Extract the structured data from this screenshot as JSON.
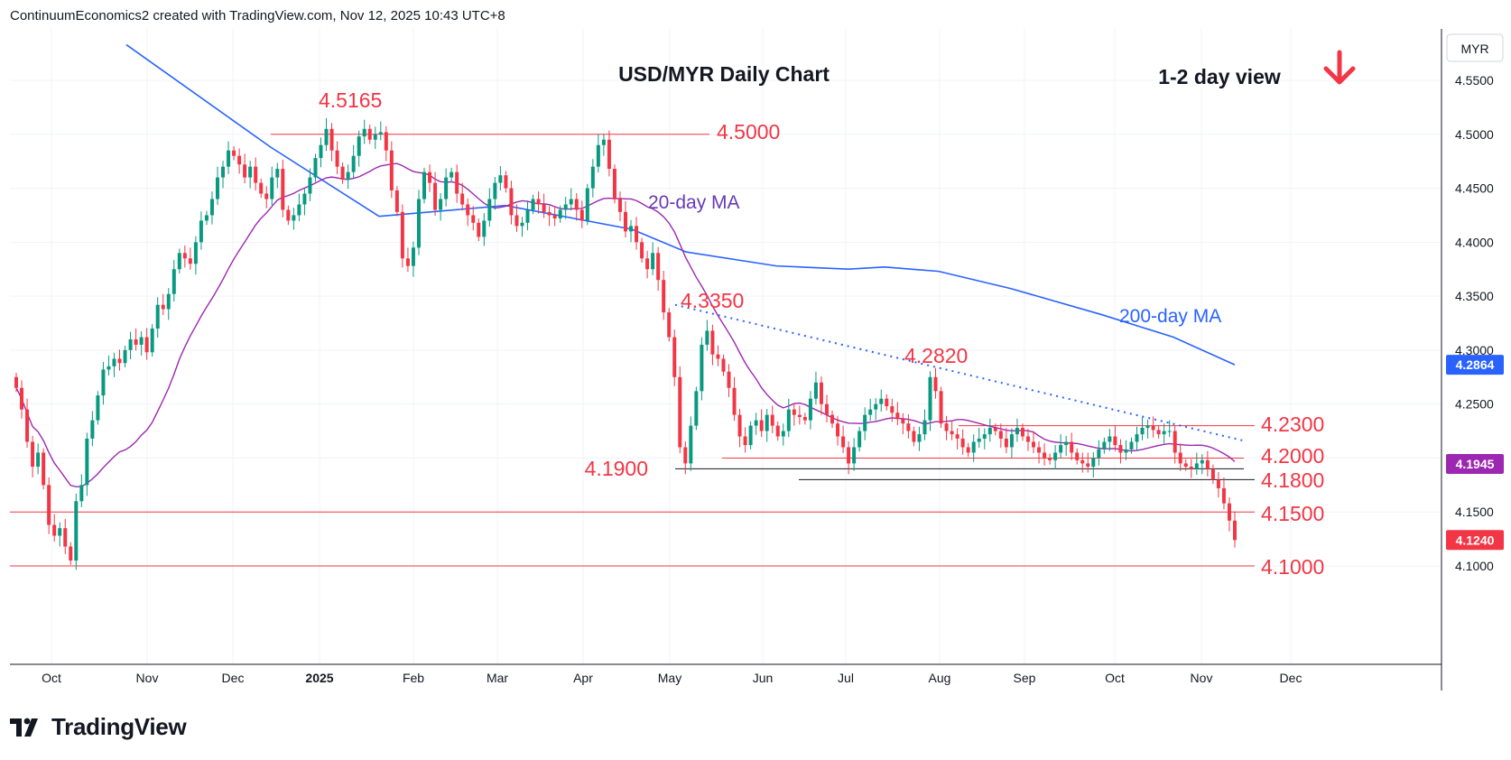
{
  "header": {
    "attribution": "ContinuumEconomics2 created with TradingView.com, Nov 12, 2025 10:43 UTC+8"
  },
  "footer": {
    "brand": "TradingView",
    "logo_icon": "tradingview-logo-icon"
  },
  "colors": {
    "up": "#089981",
    "down": "#f23645",
    "ma20": "#9c27b0",
    "ma200": "#2962ff",
    "levels": "#f23645",
    "annotation_text": "#f23645",
    "current_price_bg": "#2962ff",
    "ma20_label_bg": "#9c27b0"
  },
  "chart_data": {
    "type": "candlestick",
    "title": "USD/MYR Daily Chart",
    "view_label": "1-2 day view",
    "view_direction_icon": "down-arrow-icon",
    "currency": "MYR",
    "ylim": [
      4.03,
      4.61
    ],
    "y_ticks": [
      "4.5500",
      "4.5000",
      "4.4500",
      "4.4000",
      "4.3500",
      "4.3000",
      "4.2500",
      "4.2000",
      "4.1500",
      "4.1000"
    ],
    "x_ticks": [
      "Oct",
      "Nov",
      "Dec",
      "2025",
      "Feb",
      "Mar",
      "Apr",
      "May",
      "Jun",
      "Jul",
      "Aug",
      "Sep",
      "Oct",
      "Nov",
      "Dec"
    ],
    "price_labels": {
      "current": "4.1240",
      "ma20": "4.1945",
      "ma200": "4.2864"
    },
    "series_labels": {
      "ma20": "20-day MA",
      "ma200": "200-day MA"
    },
    "levels": [
      {
        "label": "4.5165",
        "value": 4.5165,
        "kind": "text"
      },
      {
        "label": "4.5000",
        "value": 4.5,
        "kind": "line"
      },
      {
        "label": "4.3350",
        "value": 4.335,
        "kind": "text"
      },
      {
        "label": "4.2820",
        "value": 4.282,
        "kind": "text"
      },
      {
        "label": "4.2300",
        "value": 4.23,
        "kind": "line"
      },
      {
        "label": "4.2000",
        "value": 4.2,
        "kind": "line"
      },
      {
        "label": "4.1900",
        "value": 4.19,
        "kind": "line"
      },
      {
        "label": "4.1800",
        "value": 4.18,
        "kind": "line"
      },
      {
        "label": "4.1500",
        "value": 4.15,
        "kind": "line"
      },
      {
        "label": "4.1000",
        "value": 4.1,
        "kind": "line"
      }
    ],
    "trendline": {
      "from": [
        4.342
      ],
      "to": [
        4.216
      ],
      "style": "dotted"
    },
    "ohlc_closes": [
      4.265,
      4.245,
      4.215,
      4.192,
      4.205,
      4.175,
      4.138,
      4.128,
      4.135,
      4.118,
      4.105,
      4.16,
      4.175,
      4.218,
      4.235,
      4.258,
      4.282,
      4.285,
      4.292,
      4.288,
      4.3,
      4.31,
      4.305,
      4.312,
      4.298,
      4.32,
      4.342,
      4.338,
      4.352,
      4.375,
      4.39,
      4.385,
      4.38,
      4.4,
      4.42,
      4.425,
      4.44,
      4.46,
      4.47,
      4.485,
      4.48,
      4.472,
      4.46,
      4.47,
      4.455,
      4.445,
      4.44,
      4.46,
      4.468,
      4.43,
      4.42,
      4.425,
      4.435,
      4.445,
      4.46,
      4.478,
      4.49,
      4.505,
      4.485,
      4.47,
      4.458,
      4.465,
      4.48,
      4.498,
      4.505,
      4.495,
      4.5,
      4.502,
      4.485,
      4.448,
      4.428,
      4.385,
      4.378,
      4.395,
      4.44,
      4.465,
      4.455,
      4.43,
      4.44,
      4.46,
      4.465,
      4.445,
      4.435,
      4.425,
      4.418,
      4.405,
      4.42,
      4.44,
      4.455,
      4.462,
      4.45,
      4.425,
      4.415,
      4.418,
      4.43,
      4.44,
      4.435,
      4.428,
      4.425,
      4.422,
      4.43,
      4.435,
      4.44,
      4.43,
      4.42,
      4.45,
      4.47,
      4.49,
      4.495,
      4.468,
      4.44,
      4.428,
      4.41,
      4.415,
      4.4,
      4.385,
      4.375,
      4.39,
      4.365,
      4.335,
      4.312,
      4.275,
      4.21,
      4.195,
      4.23,
      4.262,
      4.305,
      4.318,
      4.296,
      4.292,
      4.28,
      4.265,
      4.24,
      4.22,
      4.212,
      4.23,
      4.235,
      4.225,
      4.24,
      4.23,
      4.22,
      4.225,
      4.245,
      4.24,
      4.238,
      4.235,
      4.255,
      4.27,
      4.25,
      4.24,
      4.232,
      4.22,
      4.21,
      4.195,
      4.21,
      4.225,
      4.24,
      4.245,
      4.25,
      4.255,
      4.248,
      4.242,
      4.236,
      4.232,
      4.225,
      4.215,
      4.222,
      4.235,
      4.275,
      4.262,
      4.232,
      4.225,
      4.222,
      4.218,
      4.21,
      4.205,
      4.215,
      4.218,
      4.222,
      4.228,
      4.225,
      4.218,
      4.21,
      4.222,
      4.228,
      4.22,
      4.215,
      4.21,
      4.205,
      4.2,
      4.198,
      4.205,
      4.212,
      4.215,
      4.205,
      4.198,
      4.195,
      4.192,
      4.2,
      4.208,
      4.215,
      4.22,
      4.212,
      4.205,
      4.208,
      4.215,
      4.222,
      4.228,
      4.23,
      4.226,
      4.222,
      4.225,
      4.225,
      4.205,
      4.195,
      4.192,
      4.19,
      4.195,
      4.198,
      4.19,
      4.18,
      4.172,
      4.158,
      4.142,
      4.124
    ]
  }
}
